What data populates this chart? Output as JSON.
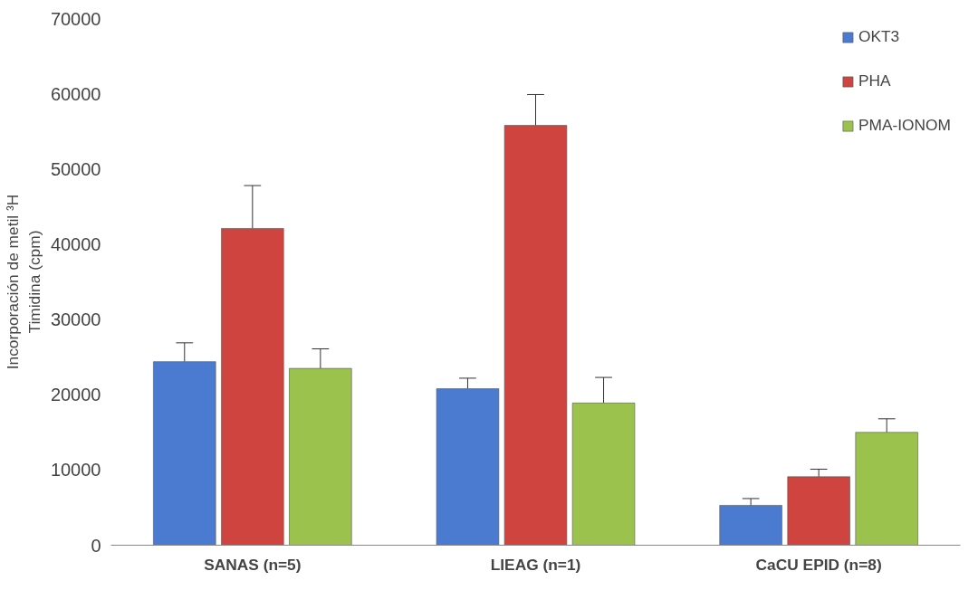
{
  "chart_data": {
    "type": "bar",
    "ylabel": "Incorporación de metil ³H\nTimidina (cpm)",
    "categories": [
      "SANAS (n=5)",
      "LIEAG (n=1)",
      "CaCU EPID (n=8)"
    ],
    "series": [
      {
        "name": "OKT3",
        "color": "#4a7bd0",
        "values": [
          24400,
          20800,
          5300
        ],
        "errors": [
          [
            24400,
            26900
          ],
          [
            20800,
            22200
          ],
          [
            5300,
            6200
          ]
        ]
      },
      {
        "name": "PHA",
        "color": "#d0443f",
        "values": [
          42100,
          55800,
          9100
        ],
        "errors": [
          [
            42100,
            47800
          ],
          [
            55800,
            59900
          ],
          [
            9100,
            10100
          ]
        ]
      },
      {
        "name": "PMA-IONOM",
        "color": "#9cc24e",
        "values": [
          23500,
          18900,
          15000
        ],
        "errors": [
          [
            23500,
            26100
          ],
          [
            18900,
            22300
          ],
          [
            15000,
            16800
          ]
        ]
      }
    ],
    "ylim": [
      0,
      70000
    ],
    "yticks": [
      0,
      10000,
      20000,
      30000,
      40000,
      50000,
      60000,
      70000
    ],
    "grid": false,
    "legend": "top right"
  }
}
